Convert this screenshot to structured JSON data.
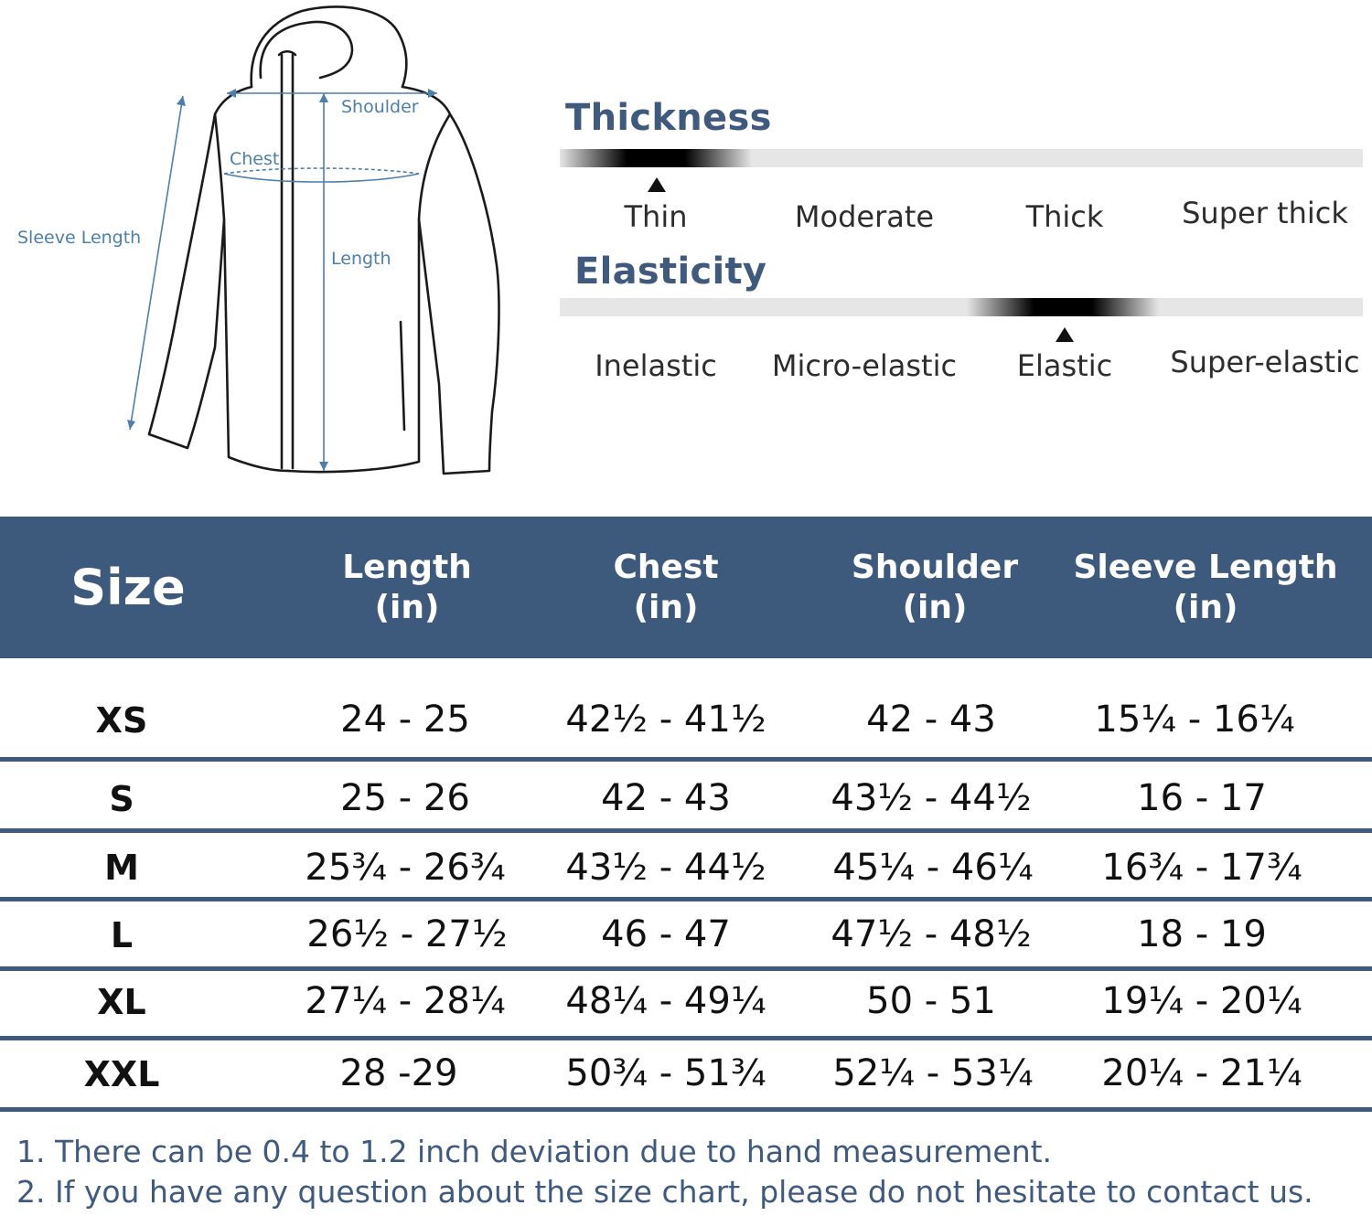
{
  "diagram": {
    "labels": {
      "shoulder": "Shoulder",
      "chest": "Chest",
      "sleeve_length": "Sleeve Length",
      "length": "Length"
    }
  },
  "thickness": {
    "title": "Thickness",
    "options": [
      "Thin",
      "Moderate",
      "Thick",
      "Super thick"
    ],
    "selected": "Thin"
  },
  "elasticity": {
    "title": "Elasticity",
    "options": [
      "Inelastic",
      "Micro-elastic",
      "Elastic",
      "Super-elastic"
    ],
    "selected": "Elastic"
  },
  "table": {
    "headers": [
      {
        "line1": "Size",
        "line2": ""
      },
      {
        "line1": "Length",
        "line2": "(in)"
      },
      {
        "line1": "Chest",
        "line2": "(in)"
      },
      {
        "line1": "Shoulder",
        "line2": "(in)"
      },
      {
        "line1": "Sleeve Length",
        "line2": "(in)"
      }
    ],
    "rows": [
      [
        "XS",
        "24 - 25",
        "42½ - 41½",
        "42 - 43",
        "15¼ - 16¼"
      ],
      [
        "S",
        "25 - 26",
        "42 - 43",
        "43½ - 44½",
        "16 - 17"
      ],
      [
        "M",
        "25¾ - 26¾",
        "43½ - 44½",
        "45¼ - 46¼",
        "16¾ - 17¾"
      ],
      [
        "L",
        "26½ - 27½",
        "46 - 47",
        "47½ - 48½",
        "18 - 19"
      ],
      [
        "XL",
        "27¼ - 28¼",
        "48¼ - 49¼",
        "50 - 51",
        "19¼ - 20¼"
      ],
      [
        "XXL",
        "28 -29",
        "50¾ - 51¾",
        "52¼ - 53¼",
        "20¼ - 21¼"
      ]
    ]
  },
  "notes": [
    "1. There can be 0.4 to 1.2 inch deviation due to hand measurement.",
    "2. If you have any question about the size chart, please do not hesitate to contact us."
  ],
  "colors": {
    "header_bg": "#3d5a7c",
    "title_color": "#3f5a7c",
    "diagram_blue": "#4d7fa8"
  }
}
